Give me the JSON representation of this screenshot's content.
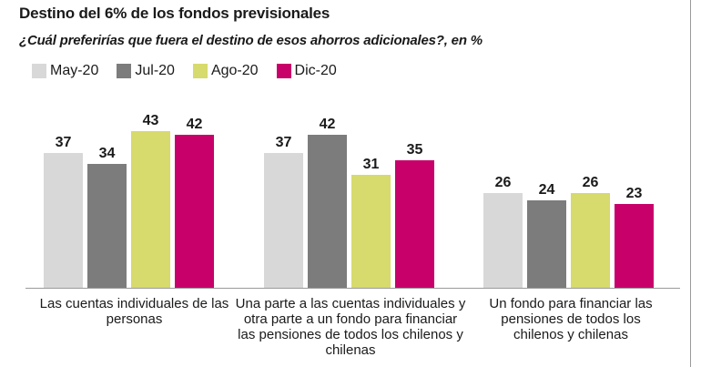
{
  "header": {
    "title": "Destino del 6% de los fondos previsionales",
    "subtitle": "¿Cuál preferirías que fuera el destino de esos ahorros adicionales?, en %"
  },
  "colors": {
    "May-20": "#d8d8d8",
    "Jul-20": "#7c7c7c",
    "Ago-20": "#d7da6c",
    "Dic-20": "#c8006a",
    "axis": "#9a9a9a"
  },
  "chart_data": {
    "type": "bar",
    "title": "Destino del 6% de los fondos previsionales",
    "subtitle": "¿Cuál preferirías que fuera el destino de esos ahorros adicionales?, en %",
    "xlabel": "",
    "ylabel": "",
    "ylim": [
      0,
      50
    ],
    "grid": false,
    "legend_position": "top-left",
    "categories": [
      "Las cuentas individuales de las personas",
      "Una parte a las cuentas individuales y otra parte a un fondo para financiar las pensiones de todos los chilenos y chilenas",
      "Un fondo para financiar  las pensiones de todos los chilenos y chilenas"
    ],
    "series": [
      {
        "name": "May-20",
        "values": [
          37,
          37,
          26
        ]
      },
      {
        "name": "Jul-20",
        "values": [
          34,
          42,
          24
        ]
      },
      {
        "name": "Ago-20",
        "values": [
          43,
          31,
          26
        ]
      },
      {
        "name": "Dic-20",
        "values": [
          42,
          35,
          23
        ]
      }
    ]
  }
}
